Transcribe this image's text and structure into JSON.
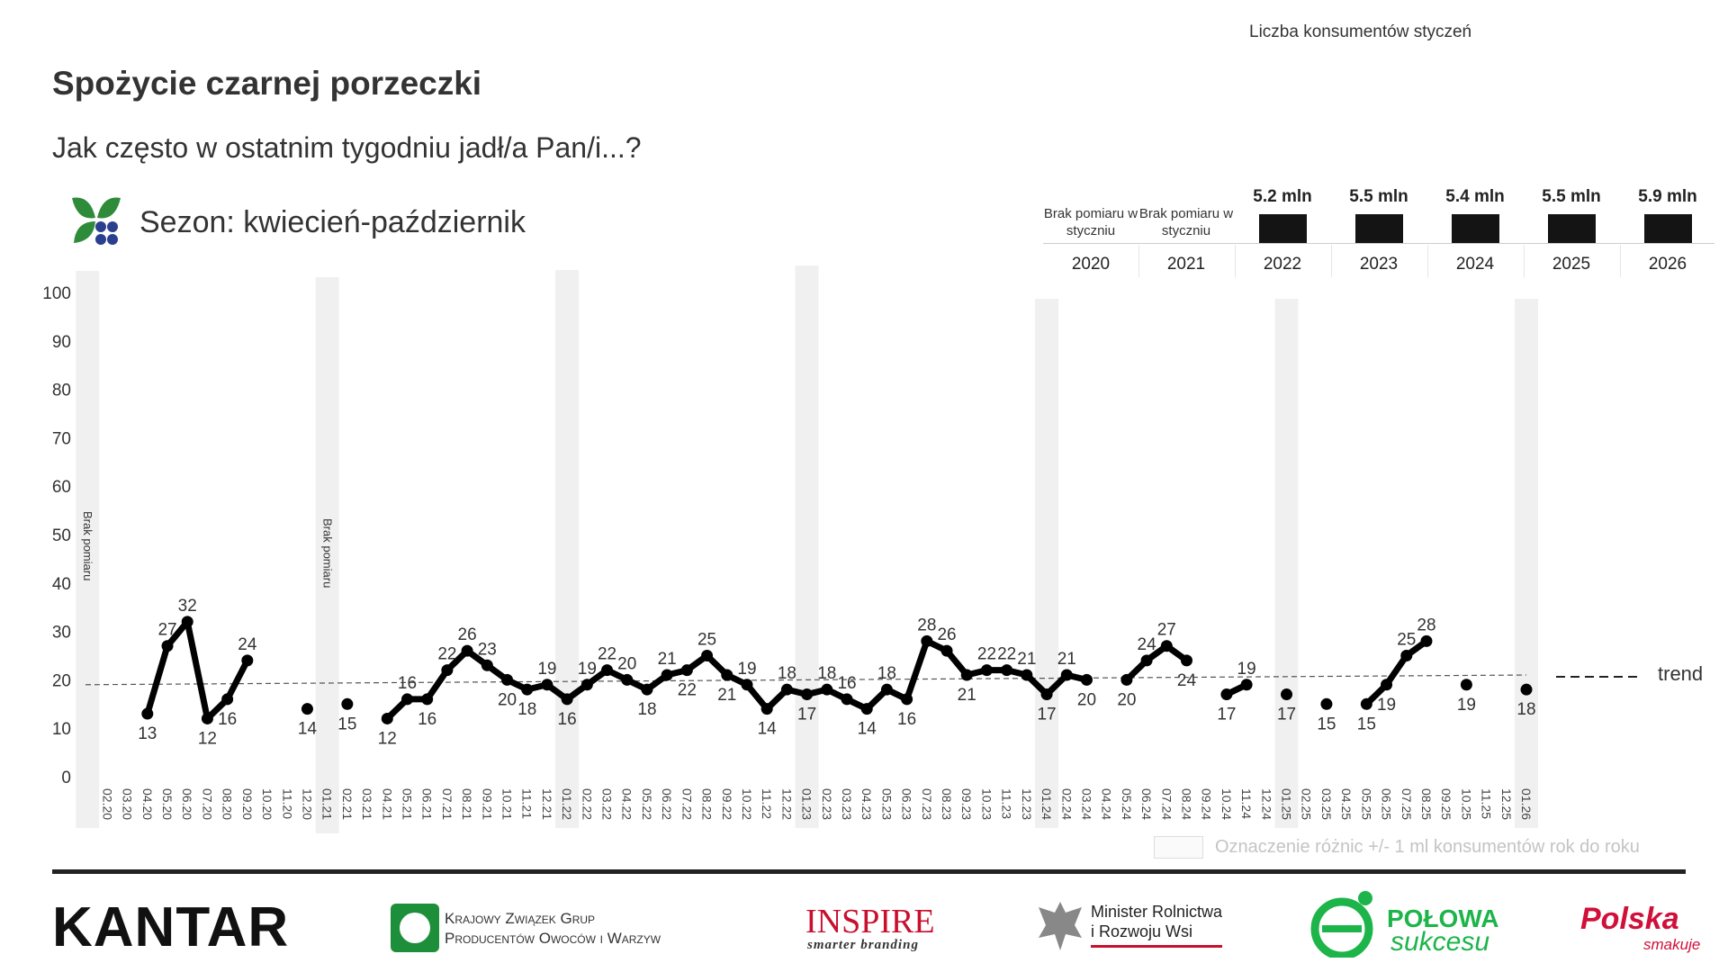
{
  "header": {
    "title": "Spożycie czarnej porzeczki",
    "subtitle": "Jak często w ostatnim tygodniu jadł/a Pan/i...?",
    "season": "Sezon: kwiecień-październik",
    "season_icon": "blackcurrant-leaf-icon"
  },
  "consumers_panel": {
    "caption": "Liczba konsumentów styczeń",
    "no_measure": "Brak pomiaru w styczniu",
    "columns": [
      {
        "year": "2020",
        "value": null
      },
      {
        "year": "2021",
        "value": null
      },
      {
        "year": "2022",
        "value": "5.2 mln"
      },
      {
        "year": "2023",
        "value": "5.5 mln"
      },
      {
        "year": "2024",
        "value": "5.4 mln"
      },
      {
        "year": "2025",
        "value": "5.5 mln"
      },
      {
        "year": "2026",
        "value": "5.9 mln"
      }
    ],
    "bar_color": "#141414"
  },
  "chart_data": {
    "type": "line",
    "title": "",
    "xlabel": "",
    "ylabel": "",
    "ylim": [
      0,
      100
    ],
    "yticks": [
      0,
      10,
      20,
      30,
      40,
      50,
      60,
      70,
      80,
      90,
      100
    ],
    "grid": false,
    "x": [
      "02.20",
      "03.20",
      "04.20",
      "05.20",
      "06.20",
      "07.20",
      "08.20",
      "09.20",
      "10.20",
      "11.20",
      "12.20",
      "01.21",
      "02.21",
      "03.21",
      "04.21",
      "05.21",
      "06.21",
      "07.21",
      "08.21",
      "09.21",
      "10.21",
      "11.21",
      "12.21",
      "01.22",
      "02.22",
      "03.22",
      "04.22",
      "05.22",
      "06.22",
      "07.22",
      "08.22",
      "09.22",
      "10.22",
      "11.22",
      "12.22",
      "01.23",
      "02.23",
      "03.23",
      "04.23",
      "05.23",
      "06.23",
      "07.23",
      "08.23",
      "09.23",
      "10.23",
      "11.23",
      "12.23",
      "01.24",
      "02.24",
      "03.24",
      "04.24",
      "05.24",
      "06.24",
      "07.24",
      "08.24",
      "09.24",
      "10.24",
      "11.24",
      "12.24",
      "01.25",
      "02.25",
      "03.25",
      "04.25",
      "05.25",
      "06.25",
      "07.25",
      "08.25",
      "09.25",
      "10.25",
      "11.25",
      "12.25",
      "01.26"
    ],
    "series": [
      {
        "values": [
          null,
          null,
          13,
          27,
          32,
          12,
          16,
          24,
          null,
          null,
          14,
          null,
          15,
          null,
          12,
          16,
          16,
          22,
          26,
          23,
          20,
          18,
          19,
          16,
          19,
          22,
          20,
          18,
          21,
          22,
          25,
          21,
          19,
          14,
          18,
          17,
          18,
          16,
          14,
          18,
          16,
          28,
          26,
          21,
          22,
          22,
          21,
          17,
          21,
          20,
          null,
          20,
          24,
          27,
          24,
          null,
          17,
          19,
          null,
          17,
          null,
          15,
          null,
          15,
          19,
          25,
          28,
          null,
          19,
          null,
          null,
          18
        ],
        "color": "#000000"
      }
    ],
    "trend": {
      "label": "trend",
      "start": 19,
      "end": 21,
      "style": "dashed"
    },
    "highlight_months": [
      "01.20",
      "01.21",
      "01.22",
      "01.23",
      "01.24",
      "01.25",
      "01.26"
    ],
    "highlight_color": "#f0f0f0",
    "no_measure_label": "Brak pomiaru",
    "no_measure_months": [
      "01.20",
      "01.21"
    ],
    "legend_note": "Oznaczenie różnic +/- 1 ml konsumentów rok do roku"
  },
  "footer": {
    "logos": {
      "kantar": "KANTAR",
      "kzgp_line1": "Krajowy Związek Grup",
      "kzgp_line2": "Producentów Owoców i Warzyw",
      "inspire": "INSPIRE",
      "inspire_tag": "smarter branding",
      "ministry_line1": "Minister Rolnictwa",
      "ministry_line2": "i Rozwoju Wsi",
      "polowa_line1": "POŁOWA",
      "polowa_line2": "sukcesu",
      "polska_line1": "Polska",
      "polska_line2": "smakuje"
    }
  }
}
